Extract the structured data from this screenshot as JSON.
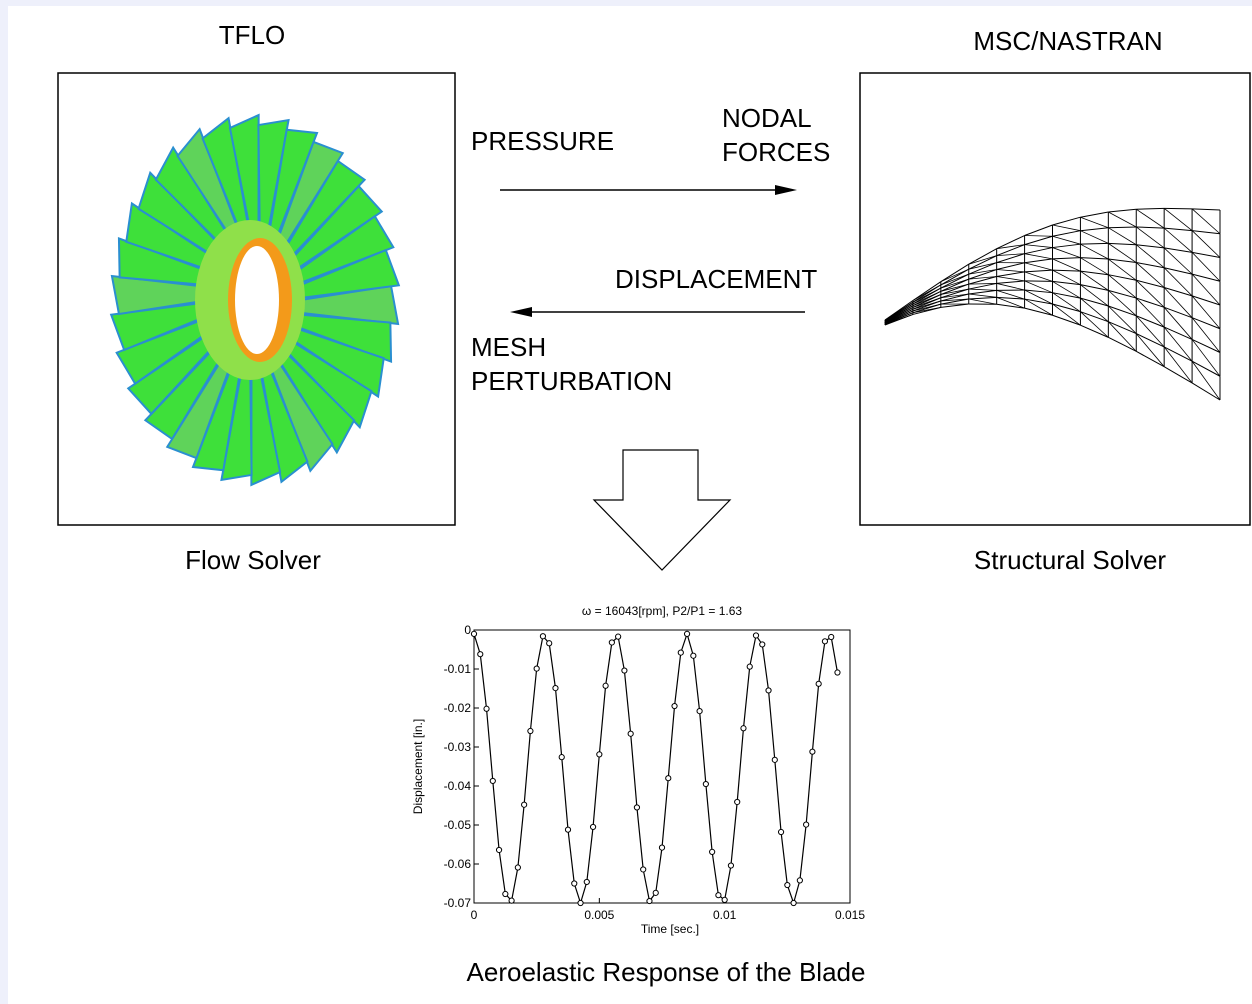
{
  "nodes": [
    {
      "title": "TFLO",
      "caption": "Flow Solver"
    },
    {
      "title": "MSC/NASTRAN",
      "caption": "Structural Solver"
    }
  ],
  "edges": [
    {
      "from_label": "PRESSURE",
      "to_label": [
        "NODAL",
        "FORCES"
      ]
    },
    {
      "from_label": "DISPLACEMENT",
      "to_label": [
        "MESH",
        "PERTURBATION"
      ]
    }
  ],
  "result_caption": "Aeroelastic Response of the Blade",
  "chart_data": {
    "type": "line",
    "title": "ω = 16043[rpm],  P2/P1 = 1.63",
    "x_label": "Time [sec.]",
    "y_label": "Displacement [in.]",
    "xlim": [
      0,
      0.015
    ],
    "ylim": [
      -0.07,
      0
    ],
    "xticks": [
      0,
      0.005,
      0.01,
      0.015
    ],
    "yticks": [
      0,
      -0.01,
      -0.02,
      -0.03,
      -0.04,
      -0.05,
      -0.06,
      -0.07
    ],
    "x": [
      0,
      0.00025,
      0.0005,
      0.00075,
      0.001,
      0.00125,
      0.0015,
      0.00175,
      0.002,
      0.00225,
      0.0025,
      0.00275,
      0.003,
      0.00325,
      0.0035,
      0.00375,
      0.004,
      0.00425,
      0.0045,
      0.00475,
      0.005,
      0.00525,
      0.0055,
      0.00575,
      0.006,
      0.00625,
      0.0065,
      0.00675,
      0.007,
      0.00725,
      0.0075,
      0.00775,
      0.008,
      0.00825,
      0.0085,
      0.00875,
      0.009,
      0.00925,
      0.0095,
      0.00975,
      0.01,
      0.01025,
      0.0105,
      0.01075,
      0.011,
      0.01125,
      0.0115,
      0.01175,
      0.012,
      0.01225,
      0.0125,
      0.01275,
      0.013,
      0.01325,
      0.0135,
      0.01375,
      0.014,
      0.01425,
      0.0145
    ],
    "series": [
      {
        "color": "#000000",
        "values": [
          -0.001,
          -0.0062,
          -0.0202,
          -0.0387,
          -0.0564,
          -0.0677,
          -0.0694,
          -0.0609,
          -0.0448,
          -0.0259,
          -0.0099,
          -0.0016,
          -0.0034,
          -0.0149,
          -0.0326,
          -0.0512,
          -0.065,
          -0.07,
          -0.0646,
          -0.0505,
          -0.0319,
          -0.0143,
          -0.0032,
          -0.0017,
          -0.0104,
          -0.0266,
          -0.0455,
          -0.0614,
          -0.0695,
          -0.0674,
          -0.0558,
          -0.038,
          -0.0195,
          -0.0058,
          -0.001,
          -0.0066,
          -0.0208,
          -0.0395,
          -0.0569,
          -0.068,
          -0.0692,
          -0.0604,
          -0.0441,
          -0.0252,
          -0.0094,
          -0.0014,
          -0.0037,
          -0.0155,
          -0.0333,
          -0.0518,
          -0.0654,
          -0.07,
          -0.0642,
          -0.0499,
          -0.0312,
          -0.0138,
          -0.0029,
          -0.0018,
          -0.0109
        ]
      }
    ]
  }
}
